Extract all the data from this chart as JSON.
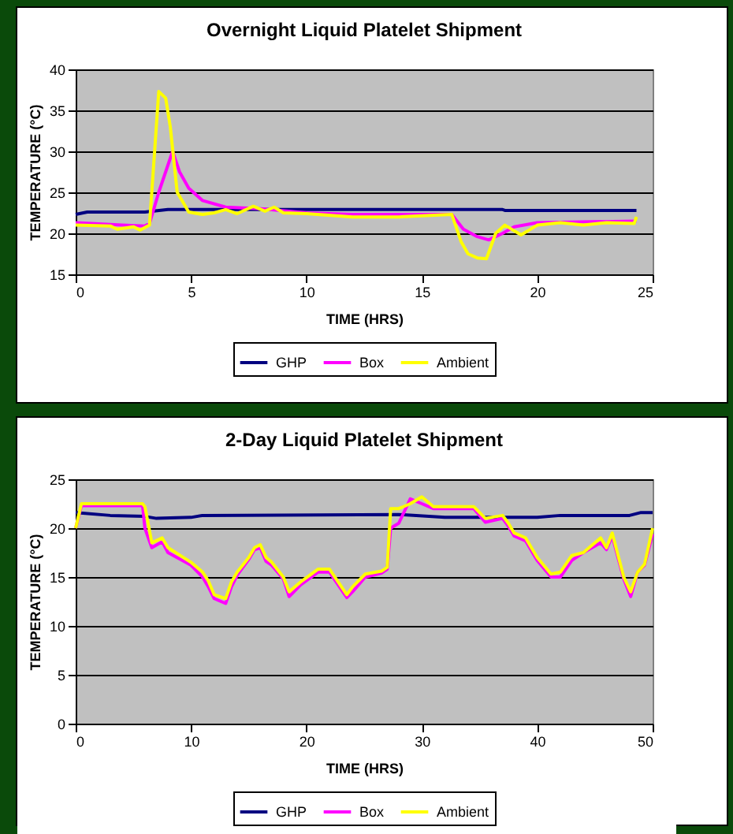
{
  "chart_data": [
    {
      "type": "line",
      "title": "Overnight Liquid Platelet Shipment",
      "xlabel": "TIME (HRS)",
      "ylabel": "TEMPERATURE (°C)",
      "xlim": [
        0,
        25
      ],
      "xticks": [
        0,
        5,
        10,
        15,
        20,
        25
      ],
      "ylim": [
        15,
        40
      ],
      "yticks": [
        15,
        20,
        25,
        30,
        35,
        40
      ],
      "grid": "y",
      "legend": "bottom",
      "line_style": "solid",
      "marker": "none",
      "series": [
        {
          "name": "GHP",
          "color": "#000080",
          "x": [
            0,
            0.5,
            3,
            4,
            18.5,
            18.6,
            24.3
          ],
          "values": [
            22.3,
            22.6,
            22.6,
            22.9,
            22.9,
            22.8,
            22.8
          ]
        },
        {
          "name": "Box",
          "color": "#ff00ff",
          "x": [
            0,
            2,
            3,
            3.2,
            3.6,
            4.2,
            4.5,
            4.9,
            5.5,
            6.5,
            8,
            10,
            12,
            16.3,
            16.8,
            17.4,
            17.9,
            18.5,
            19,
            20,
            24.3
          ],
          "values": [
            21.3,
            21,
            20.9,
            21.2,
            25,
            30,
            27.5,
            25.5,
            24,
            23.2,
            23,
            22.5,
            22.3,
            22.3,
            20.5,
            19.6,
            19.2,
            20,
            20.8,
            21.3,
            21.5
          ]
        },
        {
          "name": "Ambient",
          "color": "#ffff00",
          "x": [
            0,
            1.5,
            1.8,
            2.5,
            2.8,
            3.2,
            3.6,
            3.9,
            4.1,
            4.4,
            4.9,
            5.5,
            6,
            6.5,
            7,
            7.7,
            8.2,
            8.6,
            9,
            10,
            12,
            14,
            16.3,
            16.7,
            17,
            17.4,
            17.8,
            18.2,
            18.6,
            19.3,
            20,
            21,
            22,
            23,
            24.2,
            24.3
          ],
          "values": [
            21,
            20.9,
            20.5,
            20.8,
            20.4,
            21,
            37.3,
            36.5,
            33,
            25,
            22.6,
            22.3,
            22.5,
            22.9,
            22.4,
            23.3,
            22.7,
            23.2,
            22.5,
            22.4,
            22,
            22,
            22.3,
            19,
            17.5,
            17,
            16.9,
            20,
            21,
            19.8,
            21,
            21.3,
            21,
            21.3,
            21.2,
            22
          ]
        }
      ]
    },
    {
      "type": "line",
      "title": "2-Day Liquid Platelet Shipment",
      "xlabel": "TIME (HRS)",
      "ylabel": "TEMPERATURE (°C)",
      "xlim": [
        0,
        50
      ],
      "xticks": [
        0,
        10,
        20,
        30,
        40,
        50
      ],
      "ylim": [
        0,
        25
      ],
      "yticks": [
        0,
        5,
        10,
        15,
        20,
        25
      ],
      "grid": "y",
      "legend": "bottom",
      "line_style": "solid",
      "marker": "none",
      "series": [
        {
          "name": "GHP",
          "color": "#000080",
          "x": [
            0,
            3,
            6,
            7,
            10,
            11,
            28,
            32,
            40,
            42,
            48,
            49,
            50
          ],
          "values": [
            21.6,
            21.3,
            21.2,
            21,
            21.1,
            21.3,
            21.4,
            21.1,
            21.1,
            21.3,
            21.3,
            21.6,
            21.6
          ]
        },
        {
          "name": "Box",
          "color": "#ff00ff",
          "x": [
            0,
            0.5,
            5.8,
            6,
            6.6,
            7.5,
            8,
            10,
            11,
            11.5,
            12,
            13,
            13.5,
            14,
            15,
            15.5,
            16,
            16.5,
            17,
            18,
            18.5,
            19.5,
            21,
            22,
            23.5,
            24,
            25.1,
            26.5,
            27,
            27.3,
            28,
            29,
            30,
            31,
            33,
            34.5,
            35.5,
            37,
            37.5,
            38,
            39,
            40,
            41.2,
            42,
            43,
            44,
            45.5,
            46,
            46.5,
            47.5,
            48.1,
            48.7,
            49.3,
            50
          ],
          "values": [
            20,
            22.3,
            22.3,
            20,
            18,
            18.6,
            17.5,
            16.2,
            15,
            14,
            12.8,
            12.3,
            14,
            15.2,
            16.8,
            17.8,
            18,
            16.6,
            16.2,
            14.8,
            13,
            14.2,
            15.5,
            15.5,
            12.9,
            13.5,
            15,
            15.4,
            15.8,
            20,
            20.5,
            23,
            22.5,
            22,
            22,
            22,
            20.6,
            21,
            20.2,
            19.2,
            18.7,
            16.7,
            15,
            15,
            16.7,
            17.5,
            18.5,
            17.8,
            19.2,
            14.8,
            13,
            15.5,
            16.2,
            19.4
          ]
        },
        {
          "name": "Ambient",
          "color": "#ffff00",
          "x": [
            0,
            0.5,
            5.8,
            6,
            6.6,
            7.5,
            8,
            10,
            11,
            11.5,
            12,
            13,
            13.5,
            14,
            15,
            15.5,
            16,
            16.5,
            17,
            18,
            18.5,
            19.5,
            21,
            22,
            23.5,
            24,
            25.1,
            26.5,
            27,
            27.3,
            28,
            29,
            30,
            31,
            33,
            34.5,
            35.5,
            37,
            37.5,
            38,
            39,
            40,
            41.2,
            42,
            43,
            44,
            45.5,
            46,
            46.5,
            47.5,
            48.1,
            48.7,
            49.3,
            50
          ],
          "values": [
            20,
            22.5,
            22.5,
            22.2,
            18.5,
            19,
            18,
            16.5,
            15.5,
            14.6,
            13.2,
            12.8,
            14.5,
            15.5,
            17,
            18,
            18.3,
            17,
            16.5,
            15,
            13.5,
            14.5,
            15.8,
            15.8,
            13.2,
            14,
            15.3,
            15.6,
            16,
            22,
            22,
            22.5,
            23.2,
            22.2,
            22.2,
            22.2,
            21,
            21.3,
            20.5,
            19.5,
            19,
            17,
            15.3,
            15.5,
            17.2,
            17.5,
            19,
            18,
            19.5,
            15,
            13.5,
            15.5,
            16.3,
            20
          ]
        }
      ]
    }
  ]
}
